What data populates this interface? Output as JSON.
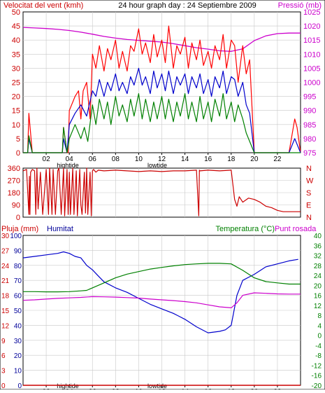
{
  "chart_data": [
    {
      "type": "line",
      "title": "24 hour graph day : 24 Septiembre 2009",
      "left_axis_label": "Velocitat del vent (kmh)",
      "right_axis_label": "Pressió (mb)",
      "left_ticks": [
        0,
        5,
        10,
        15,
        20,
        25,
        30,
        35,
        40,
        45,
        50
      ],
      "right_ticks": [
        975,
        980,
        985,
        990,
        995,
        1000,
        1005,
        1010,
        1015,
        1020,
        1025
      ],
      "ylim_left": [
        0,
        50
      ],
      "ylim_right": [
        975,
        1025
      ],
      "x_ticks": [
        "02",
        "04",
        "06",
        "08",
        "10",
        "12",
        "14",
        "16",
        "18",
        "20",
        "22"
      ],
      "annotations": [
        "hightide",
        "lowtide"
      ],
      "colors": {
        "gust": "#ff0000",
        "avg": "#0000cc",
        "min": "#008000",
        "pressure": "#cc00cc",
        "left_label": "#cc0000",
        "right_label": "#cc00cc"
      },
      "series": [
        {
          "key": "pressure",
          "axis": "right",
          "x": [
            0,
            1,
            2,
            3,
            4,
            5,
            6,
            7,
            8,
            9,
            10,
            11,
            12,
            13,
            14,
            15,
            16,
            17,
            18,
            19,
            20,
            21,
            22,
            23,
            24
          ],
          "values": [
            1019.5,
            1019.3,
            1019.1,
            1018.8,
            1018.4,
            1017.8,
            1017.1,
            1016.3,
            1015.7,
            1015.2,
            1014.9,
            1014.6,
            1014.3,
            1013.7,
            1013.0,
            1012.3,
            1011.8,
            1011.2,
            1011.0,
            1011.9,
            1014.8,
            1016.5,
            1017.3,
            1017.5,
            1017.5
          ]
        },
        {
          "key": "gust",
          "axis": "left",
          "x": [
            0,
            0.4,
            0.5,
            0.8,
            1.0,
            1.2,
            1.4,
            1.6,
            2.0,
            2.5,
            3.0,
            3.4,
            3.5,
            3.8,
            3.9,
            4.0,
            4.5,
            4.8,
            5.0,
            5.2,
            5.5,
            5.8,
            6.0,
            6.3,
            6.6,
            7.0,
            7.3,
            7.6,
            8.0,
            8.3,
            8.6,
            9.0,
            9.3,
            9.6,
            10.0,
            10.3,
            10.6,
            11.0,
            11.3,
            11.6,
            12.0,
            12.3,
            12.6,
            13.0,
            13.3,
            13.6,
            14.0,
            14.3,
            14.6,
            15.0,
            15.3,
            15.6,
            16.0,
            16.3,
            16.6,
            17.0,
            17.3,
            17.6,
            18.0,
            18.3,
            18.6,
            19.0,
            19.3,
            19.6,
            20.0,
            20.3,
            20.6,
            21.0,
            21.5,
            22.0,
            23.0,
            23.5,
            23.7,
            24.0
          ],
          "values": [
            0,
            0,
            14,
            0,
            0,
            0,
            0,
            0,
            0,
            0,
            0,
            0,
            9,
            0,
            0,
            15,
            20,
            22,
            12,
            22,
            25,
            12,
            35,
            30,
            38,
            29,
            37,
            33,
            40,
            30,
            36,
            29,
            38,
            36,
            44,
            35,
            39,
            32,
            42,
            34,
            40,
            32,
            45,
            30,
            38,
            35,
            41,
            30,
            39,
            33,
            40,
            31,
            36,
            30,
            38,
            33,
            42,
            30,
            40,
            38,
            25,
            38,
            28,
            33,
            0,
            0,
            0,
            0,
            0,
            0,
            0,
            12,
            9,
            0
          ]
        },
        {
          "key": "avg",
          "axis": "left",
          "x": [
            0,
            0.4,
            0.5,
            0.8,
            1.0,
            3.4,
            3.5,
            3.8,
            4.0,
            4.5,
            5.0,
            5.5,
            6.0,
            6.3,
            6.6,
            7.0,
            7.3,
            7.6,
            8.0,
            8.3,
            8.6,
            9.0,
            9.3,
            9.6,
            10.0,
            10.3,
            10.6,
            11.0,
            11.3,
            11.6,
            12.0,
            12.3,
            12.6,
            13.0,
            13.3,
            13.6,
            14.0,
            14.3,
            14.6,
            15.0,
            15.3,
            15.6,
            16.0,
            16.3,
            16.6,
            17.0,
            17.3,
            17.6,
            18.0,
            18.3,
            18.6,
            19.0,
            19.3,
            19.6,
            20.0,
            23.0,
            23.5,
            23.7,
            24.0
          ],
          "values": [
            0,
            0,
            5,
            0,
            0,
            0,
            5,
            0,
            10,
            14,
            17,
            13,
            22,
            20,
            26,
            20,
            25,
            22,
            28,
            22,
            25,
            21,
            27,
            24,
            30,
            24,
            27,
            21,
            29,
            23,
            28,
            22,
            29,
            21,
            27,
            24,
            28,
            21,
            27,
            23,
            28,
            21,
            26,
            20,
            27,
            23,
            29,
            21,
            27,
            26,
            20,
            25,
            17,
            14,
            0,
            0,
            5,
            3,
            0
          ]
        },
        {
          "key": "min",
          "axis": "left",
          "x": [
            0,
            0.4,
            0.5,
            0.8,
            1.0,
            3.4,
            3.5,
            3.8,
            4.0,
            4.5,
            5.0,
            5.3,
            5.6,
            6.0,
            6.3,
            6.6,
            7.0,
            7.3,
            7.6,
            8.0,
            8.3,
            8.6,
            9.0,
            9.3,
            9.6,
            10.0,
            10.3,
            10.6,
            11.0,
            11.3,
            11.6,
            12.0,
            12.3,
            12.6,
            13.0,
            13.3,
            13.6,
            14.0,
            14.3,
            14.6,
            15.0,
            15.3,
            15.6,
            16.0,
            16.3,
            16.6,
            17.0,
            17.3,
            17.6,
            18.0,
            18.3,
            18.6,
            19.0,
            19.3,
            19.6,
            20.0,
            24.0
          ],
          "values": [
            0,
            0,
            6,
            0,
            0,
            0,
            9,
            0,
            5,
            10,
            5,
            9,
            4,
            17,
            10,
            19,
            12,
            18,
            10,
            20,
            13,
            17,
            11,
            19,
            13,
            21,
            12,
            19,
            11,
            18,
            12,
            20,
            12,
            19,
            11,
            18,
            13,
            21,
            12,
            18,
            11,
            20,
            12,
            18,
            11,
            19,
            13,
            21,
            12,
            18,
            11,
            17,
            12,
            7,
            4,
            0,
            0
          ]
        }
      ]
    },
    {
      "type": "line",
      "left_ticks": [
        0,
        90,
        180,
        270,
        360
      ],
      "right_labels": [
        "N",
        "W",
        "S",
        "E",
        "N"
      ],
      "ylim": [
        0,
        360
      ],
      "colors": {
        "direction": "#cc0000"
      },
      "series": [
        {
          "key": "direction",
          "x": [
            0.0,
            0.3,
            0.5,
            0.55,
            0.6,
            0.65,
            0.8,
            1.0,
            1.1,
            1.2,
            1.3,
            1.5,
            1.7,
            2.0,
            2.2,
            2.3,
            2.5,
            2.6,
            2.8,
            3.0,
            3.1,
            3.3,
            3.5,
            3.6,
            3.8,
            3.9,
            4.0,
            4.1,
            4.3,
            4.4,
            4.6,
            4.7,
            4.9,
            5.0,
            5.1,
            5.3,
            5.4,
            5.5,
            5.6,
            5.8,
            5.9,
            6.0,
            6.1,
            6.3,
            6.5,
            7.0,
            8.0,
            9.0,
            10.0,
            11.0,
            12.0,
            13.0,
            14.0,
            15.0,
            15.2,
            15.25,
            15.3,
            16.0,
            17.0,
            18.0,
            18.3,
            18.5,
            18.7,
            19.0,
            19.5,
            20.0,
            20.5,
            21.0,
            21.5,
            22.0,
            22.5,
            23.0,
            23.5,
            24.0
          ],
          "values": [
            340,
            350,
            20,
            300,
            20,
            330,
            350,
            340,
            20,
            360,
            60,
            330,
            20,
            350,
            20,
            360,
            20,
            350,
            20,
            340,
            360,
            20,
            360,
            10,
            350,
            20,
            330,
            20,
            360,
            20,
            340,
            10,
            350,
            90,
            20,
            330,
            30,
            360,
            20,
            330,
            10,
            340,
            350,
            330,
            345,
            340,
            345,
            340,
            335,
            340,
            335,
            340,
            340,
            345,
            10,
            345,
            340,
            345,
            340,
            345,
            130,
            80,
            150,
            110,
            140,
            130,
            110,
            80,
            70,
            50,
            40,
            40,
            40,
            40
          ]
        }
      ]
    },
    {
      "type": "line",
      "left_axis_label": "Pluja (mm)",
      "humidity_label": "Humitat",
      "temperature_label": "Temperatura (°C)",
      "dewpoint_label": "Punt rosada",
      "rain_ticks": [
        0,
        3,
        6,
        9,
        12,
        15,
        18,
        21,
        24,
        27,
        30
      ],
      "humidity_ticks": [
        0,
        10,
        20,
        30,
        40,
        50,
        60,
        70,
        80,
        90,
        100
      ],
      "temperature_ticks": [
        -20,
        -16,
        -12,
        -8,
        -4,
        0,
        4,
        8,
        12,
        16,
        20,
        24,
        28,
        32,
        36,
        40
      ],
      "ylim_left": [
        0,
        100
      ],
      "ylim_right": [
        -20,
        40
      ],
      "x_ticks": [
        "02",
        "04",
        "06",
        "08",
        "10",
        "12",
        "14",
        "16",
        "18",
        "20",
        "22"
      ],
      "annotations": [
        "hightide",
        "lowtide"
      ],
      "colors": {
        "humidity": "#0000cc",
        "temperature": "#008000",
        "dewpoint": "#cc00cc",
        "rain": "#cc0000",
        "rain_label": "#cc0000",
        "humidity_label": "#000099",
        "temperature_label": "#008000",
        "dewpoint_label": "#cc00cc"
      },
      "series": [
        {
          "key": "rain",
          "axis": "left",
          "x": [
            0,
            24
          ],
          "values": [
            0,
            0
          ]
        },
        {
          "key": "humidity",
          "axis": "left",
          "x": [
            0,
            1,
            2,
            3,
            3.5,
            4,
            4.5,
            5,
            5.5,
            6,
            6.5,
            7,
            8,
            9,
            10,
            11,
            12,
            13,
            14,
            15,
            16,
            17,
            17.5,
            18,
            18.5,
            19,
            20,
            21,
            22,
            23,
            23.8
          ],
          "values": [
            85,
            86,
            87,
            88,
            89,
            88,
            86,
            85,
            80,
            77,
            73,
            69,
            65,
            62,
            58,
            54,
            51,
            48,
            44,
            39,
            35,
            36,
            37,
            40,
            60,
            70,
            74,
            79,
            81,
            83,
            84
          ]
        },
        {
          "key": "temperature",
          "axis": "right",
          "x": [
            0,
            1,
            2,
            3,
            4,
            5,
            5.5,
            6,
            7,
            8,
            9,
            10,
            11,
            12,
            13,
            14,
            15,
            16,
            17,
            18,
            19,
            20,
            21,
            22,
            23,
            24
          ],
          "values": [
            17.5,
            17.5,
            17.4,
            17.4,
            17.5,
            17.8,
            18,
            19,
            21,
            23,
            24.5,
            25.5,
            26.5,
            27.2,
            27.8,
            28.3,
            28.6,
            28.8,
            28.8,
            28.6,
            26,
            23,
            21.5,
            21,
            20.5,
            20.5
          ]
        },
        {
          "key": "dewpoint",
          "axis": "right",
          "x": [
            0,
            1,
            2,
            3,
            4,
            5,
            6,
            7,
            8,
            9,
            10,
            11,
            12,
            13,
            14,
            15,
            16,
            17,
            18,
            18.5,
            19,
            20,
            21,
            22,
            23,
            24
          ],
          "values": [
            14,
            14.2,
            14.5,
            14.8,
            15,
            15.2,
            15.5,
            15.4,
            15.3,
            15.1,
            14.9,
            14.5,
            14.2,
            13.9,
            13.5,
            13,
            12.2,
            11.4,
            11,
            13,
            16,
            17,
            16.8,
            16.6,
            16.5,
            16.5
          ]
        }
      ]
    }
  ]
}
